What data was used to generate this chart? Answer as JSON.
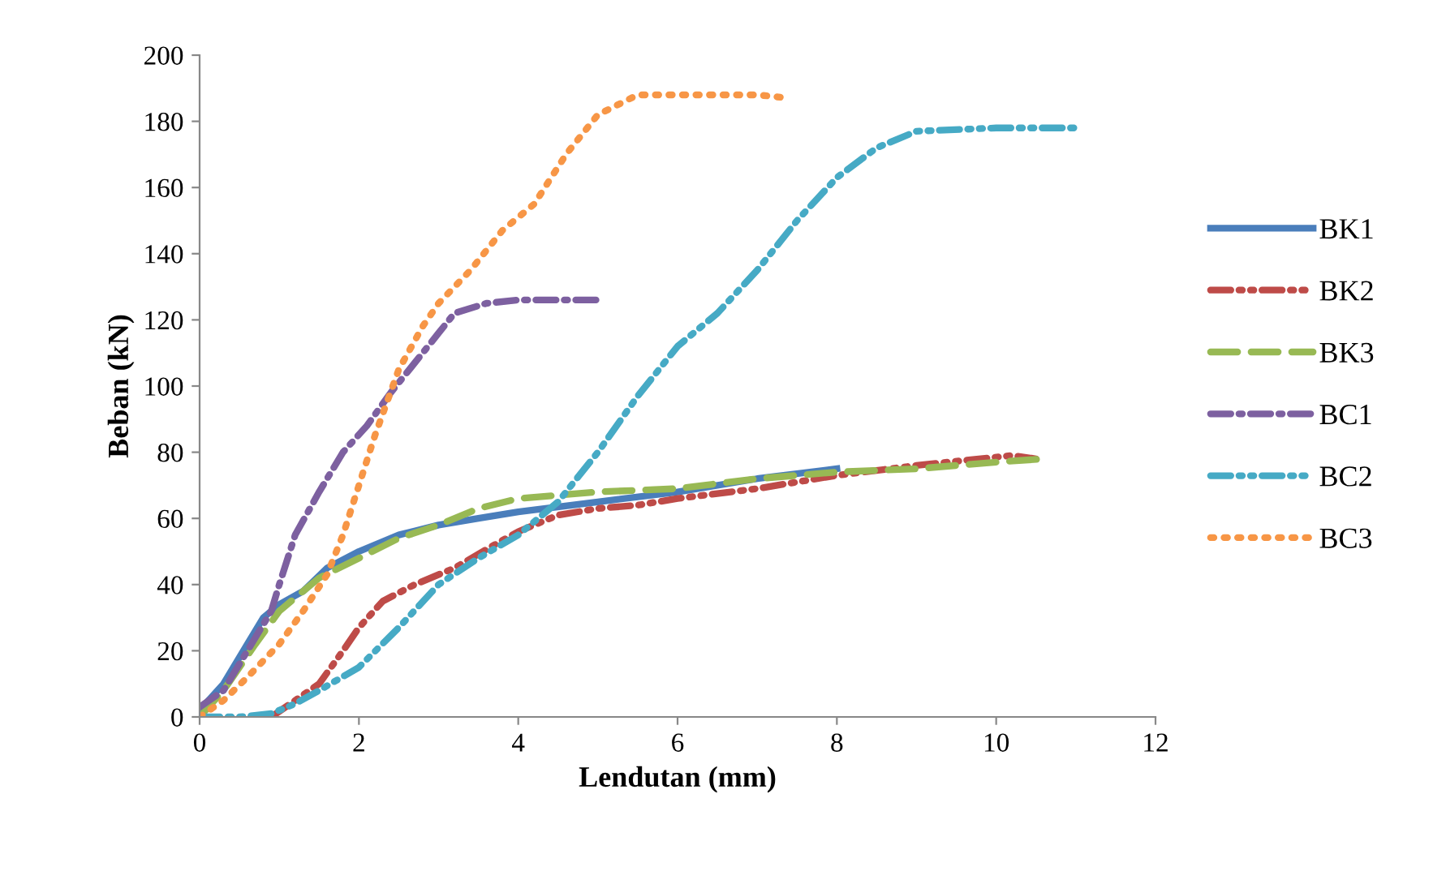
{
  "chart_data": {
    "type": "line",
    "xlabel": "Lendutan (mm)",
    "ylabel": "Beban (kN)",
    "xlim": [
      0,
      12
    ],
    "xticks": [
      0,
      2,
      4,
      6,
      8,
      10,
      12
    ],
    "ylim": [
      0,
      200
    ],
    "yticks": [
      0,
      20,
      40,
      60,
      80,
      100,
      120,
      140,
      160,
      180,
      200
    ],
    "grid": false,
    "legend": "right",
    "marker": "none",
    "series": [
      {
        "name": "BK1",
        "color": "#4a7ebb",
        "line_style": "solid",
        "x": [
          0,
          0.3,
          0.6,
          0.8,
          1,
          1.3,
          1.6,
          2,
          2.5,
          3,
          3.5,
          4,
          5,
          6,
          7,
          8
        ],
        "values": [
          2,
          10,
          22,
          30,
          34,
          38,
          45,
          50,
          55,
          58,
          60,
          62,
          65,
          68,
          72,
          75
        ]
      },
      {
        "name": "BK2",
        "color": "#be4b48",
        "line_style": "dashdotdot",
        "x": [
          0.9,
          1.2,
          1.5,
          1.8,
          2,
          2.3,
          2.7,
          3.2,
          3.7,
          4,
          4.5,
          5,
          5.5,
          6,
          7,
          8,
          9,
          10.2,
          10.5
        ],
        "values": [
          0,
          5,
          10,
          20,
          27,
          35,
          40,
          45,
          52,
          56,
          61,
          63,
          64,
          66,
          69,
          73,
          76,
          79,
          78
        ]
      },
      {
        "name": "BK3",
        "color": "#98b954",
        "line_style": "dashed",
        "x": [
          0,
          0.3,
          0.7,
          1,
          1.3,
          1.5,
          2,
          2.5,
          3,
          3.5,
          4,
          5,
          6,
          7,
          8,
          9,
          10,
          10.6
        ],
        "values": [
          0,
          8,
          22,
          32,
          38,
          42,
          48,
          54,
          58,
          63,
          66,
          68,
          69,
          72,
          74,
          75,
          77,
          78
        ]
      },
      {
        "name": "BC1",
        "color": "#7d60a0",
        "line_style": "dashdot",
        "x": [
          0,
          0.3,
          0.6,
          0.9,
          1,
          1.2,
          1.5,
          1.8,
          2.1,
          2.4,
          2.8,
          3,
          3.2,
          3.6,
          4,
          5
        ],
        "values": [
          3,
          8,
          20,
          32,
          40,
          55,
          68,
          80,
          88,
          98,
          110,
          116,
          122,
          125,
          126,
          126
        ]
      },
      {
        "name": "BC2",
        "color": "#46aac5",
        "line_style": "dashdotdot",
        "x": [
          0,
          0.5,
          0.9,
          1.2,
          1.5,
          2,
          2.5,
          3,
          3.5,
          4,
          4.5,
          5,
          5.5,
          6,
          6.5,
          7,
          7.5,
          8,
          8.5,
          9,
          10,
          11
        ],
        "values": [
          0,
          0,
          1,
          4,
          8,
          15,
          27,
          40,
          48,
          55,
          65,
          80,
          97,
          112,
          122,
          135,
          150,
          163,
          172,
          177,
          178,
          178
        ]
      },
      {
        "name": "BC3",
        "color": "#f79646",
        "line_style": "dotted",
        "x": [
          0,
          0.3,
          0.6,
          1,
          1.3,
          1.6,
          1.8,
          2,
          2.2,
          2.5,
          2.8,
          3,
          3.4,
          3.8,
          4.2,
          4.6,
          5,
          5.5,
          6.3,
          7,
          7.4
        ],
        "values": [
          0,
          5,
          12,
          22,
          32,
          43,
          55,
          70,
          85,
          105,
          118,
          125,
          135,
          147,
          155,
          170,
          182,
          188,
          188,
          188,
          187
        ]
      }
    ]
  }
}
